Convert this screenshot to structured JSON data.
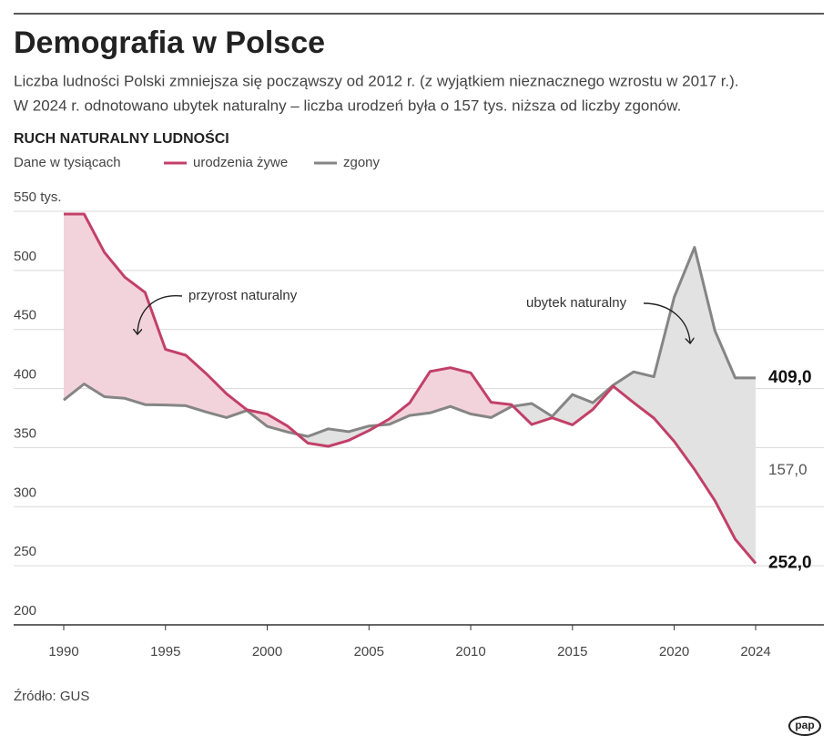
{
  "chart_data": {
    "type": "line",
    "title": "Demografia w Polsce",
    "subtitle": [
      "Liczba ludności Polski zmniejsza się począwszy od 2012 r. (z wyjątkiem nieznacznego wzrostu w 2017 r.).",
      "W 2024 r. odnotowano ubytek naturalny – liczba urodzeń była o 157 tys. niższa od liczby zgonów."
    ],
    "chart_title": "RUCH NATURALNY LUDNOŚCI",
    "units_note": "Dane w tysiącach",
    "x": [
      1990,
      1991,
      1992,
      1993,
      1994,
      1995,
      1996,
      1997,
      1998,
      1999,
      2000,
      2001,
      2002,
      2003,
      2004,
      2005,
      2006,
      2007,
      2008,
      2009,
      2010,
      2011,
      2012,
      2013,
      2014,
      2015,
      2016,
      2017,
      2018,
      2019,
      2020,
      2021,
      2022,
      2023,
      2024
    ],
    "series": [
      {
        "name": "urodzenia żywe",
        "color": "#c2406a",
        "fill": "#f3d3db",
        "values": [
          547.7,
          547.7,
          515.2,
          494.3,
          481.3,
          433.1,
          428.2,
          412.6,
          395.6,
          382.0,
          378.3,
          368.2,
          353.8,
          351.1,
          356.1,
          364.4,
          374.2,
          387.9,
          414.5,
          417.6,
          413.3,
          388.4,
          386.3,
          369.6,
          375.2,
          369.3,
          382.3,
          402.0,
          388.2,
          375.0,
          355.3,
          331.5,
          305.1,
          272.5,
          252.0
        ],
        "value_labels": [
          null,
          null,
          null,
          null,
          null,
          null,
          null,
          null,
          null,
          null,
          null,
          null,
          null,
          null,
          null,
          null,
          null,
          null,
          null,
          null,
          null,
          null,
          null,
          null,
          null,
          null,
          null,
          null,
          null,
          null,
          null,
          null,
          null,
          null,
          "252,0"
        ]
      },
      {
        "name": "zgony",
        "color": "#858585",
        "fill": "#e2e2e2",
        "values": [
          390.3,
          403.9,
          393.1,
          391.7,
          386.4,
          386.1,
          385.5,
          380.2,
          375.5,
          381.4,
          368.0,
          363.2,
          359.5,
          365.9,
          363.5,
          368.3,
          369.7,
          377.2,
          379.4,
          384.9,
          378.5,
          375.5,
          384.8,
          387.3,
          376.5,
          394.9,
          388.0,
          402.8,
          414.2,
          410.0,
          477.4,
          519.5,
          448.9,
          409.0,
          409.0
        ],
        "value_labels": [
          null,
          null,
          null,
          null,
          null,
          null,
          null,
          null,
          null,
          null,
          null,
          null,
          null,
          null,
          null,
          null,
          null,
          null,
          null,
          null,
          null,
          null,
          null,
          null,
          null,
          null,
          null,
          null,
          null,
          null,
          null,
          null,
          null,
          null,
          "409,0"
        ]
      }
    ],
    "gap_label": {
      "value": 157,
      "label": "157,0"
    },
    "annotations": [
      "przyrost naturalny",
      "ubytek naturalny"
    ],
    "xlim": [
      1990,
      2024
    ],
    "xticks": [
      1990,
      1995,
      2000,
      2005,
      2010,
      2015,
      2020,
      2024
    ],
    "ylim": [
      200,
      550
    ],
    "yticks": [
      200,
      250,
      300,
      350,
      400,
      450,
      500,
      {
        "value": 550,
        "label": "550 tys."
      }
    ],
    "grid": true,
    "source": "Źródło: GUS",
    "logo": "pap"
  }
}
